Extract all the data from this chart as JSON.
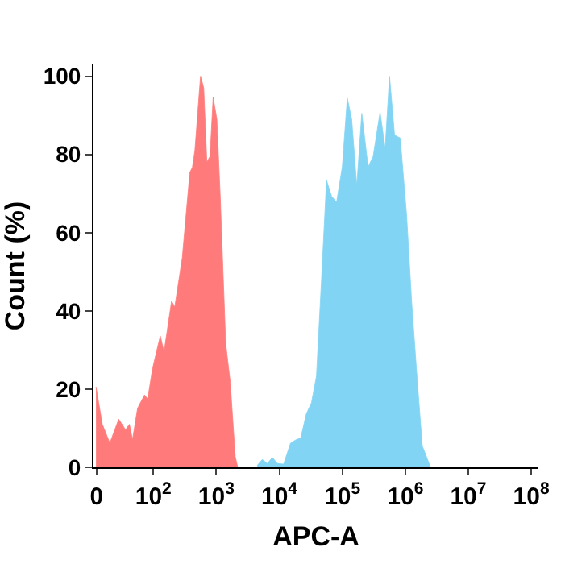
{
  "chart_data": {
    "type": "area",
    "xlabel": "APC-A",
    "ylabel": "Count (%)",
    "log": "x",
    "xlim": [
      0,
      130000000
    ],
    "xticks": [
      {
        "value": 0,
        "label": "0"
      },
      {
        "value": 100,
        "label": "10$^{2}$"
      },
      {
        "value": 1000,
        "label": "10$^{3}$"
      },
      {
        "value": 10000,
        "label": "10$^{4}$"
      },
      {
        "value": 100000,
        "label": "10$^{5}$"
      },
      {
        "value": 1000000,
        "label": "10$^{6}$"
      },
      {
        "value": 10000000,
        "label": "10$^{7}$"
      },
      {
        "value": 100000000,
        "label": "10$^{8}$"
      }
    ],
    "ylim": [
      0,
      103
    ],
    "yticks": [
      0,
      20,
      40,
      60,
      80,
      100
    ],
    "series": [
      {
        "color": "#ff7b7b",
        "x": [
          12.3,
          15.5,
          20.4,
          28.2,
          36.3,
          41.7,
          46.8,
          56.2,
          72.4,
          81.3,
          97.7,
          129,
          148,
          195,
          219,
          288,
          380,
          417,
          457,
          562,
          631,
          708,
          794,
          891,
          1020,
          1150,
          1410,
          1660,
          2000,
          2190
        ],
        "values": [
          20.6,
          11,
          6.2,
          12.3,
          9.6,
          11,
          7.1,
          15.1,
          18.5,
          17.5,
          25.4,
          33.6,
          29.5,
          42.5,
          41,
          53.5,
          75.4,
          76.7,
          81,
          100,
          97,
          78,
          79.5,
          94.6,
          89,
          70,
          31.6,
          22,
          2.7,
          0
        ]
      },
      {
        "color": "#82d4f4",
        "x": [
          4470,
          5370,
          6460,
          7760,
          9330,
          11700,
          15100,
          18200,
          21900,
          26900,
          32400,
          38900,
          46800,
          56200,
          67600,
          81300,
          100000,
          120000,
          141000,
          170000,
          204000,
          257000,
          309000,
          398000,
          479000,
          562000,
          676000,
          832000,
          1050000,
          1260000,
          1510000,
          1860000,
          2450000
        ],
        "values": [
          0.5,
          2,
          1,
          2.5,
          1,
          0.8,
          6.2,
          7,
          7.5,
          13.7,
          16.5,
          23.3,
          48,
          73.4,
          69.3,
          67.8,
          76.8,
          94.4,
          89,
          72,
          90.5,
          76.8,
          79.5,
          90.8,
          81.5,
          100,
          84.9,
          84.2,
          64.5,
          42.5,
          24.7,
          5.5,
          0.5
        ]
      }
    ]
  }
}
